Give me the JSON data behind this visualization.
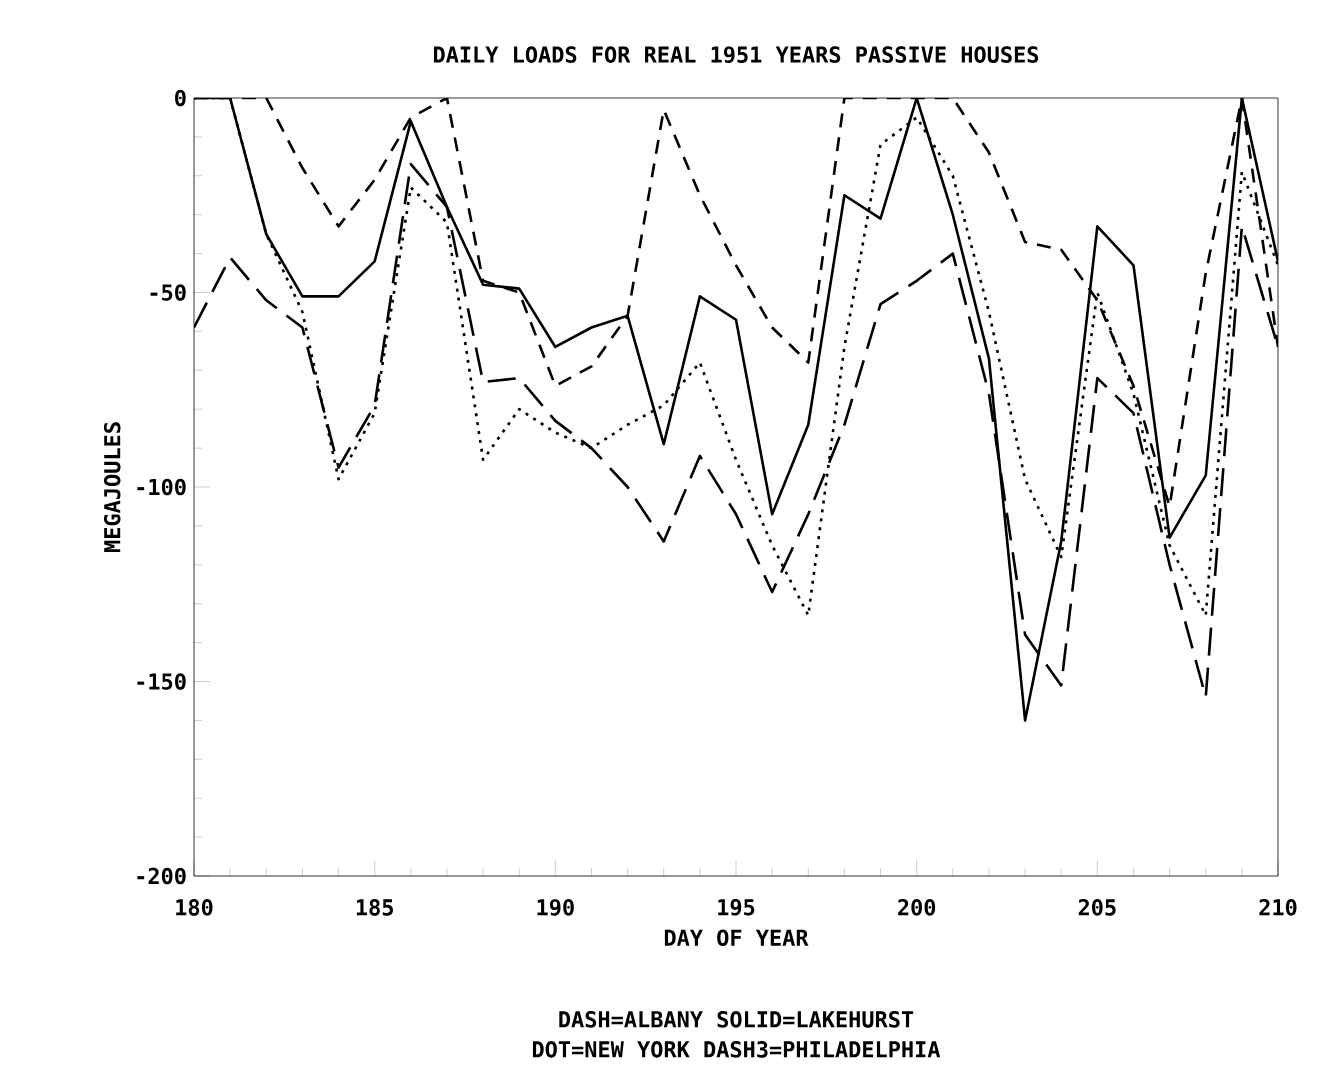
{
  "chart_data": {
    "type": "line",
    "title": "DAILY LOADS FOR REAL 1951 YEARS PASSIVE HOUSES",
    "xlabel": "DAY OF YEAR",
    "ylabel": "MEGAJOULES",
    "annotations": [
      "DASH=ALBANY  SOLID=LAKEHURST",
      "DOT=NEW YORK  DASH3=PHILADELPHIA"
    ],
    "x": [
      180,
      181,
      182,
      183,
      184,
      185,
      186,
      187,
      188,
      189,
      190,
      191,
      192,
      193,
      194,
      195,
      196,
      197,
      198,
      199,
      200,
      201,
      202,
      203,
      204,
      205,
      206,
      207,
      208,
      209,
      210
    ],
    "xlim": [
      180,
      210
    ],
    "xticks": [
      180,
      185,
      190,
      195,
      200,
      205,
      210
    ],
    "ylim": [
      -200,
      0
    ],
    "yticks": [
      0,
      -50,
      -100,
      -150,
      -200
    ],
    "grid": false,
    "marker": "none",
    "series": [
      {
        "color": "#000000",
        "line_style": "dashed",
        "values": [
          0,
          0,
          0,
          -18,
          -33,
          -21,
          -5,
          0,
          -47,
          -50,
          -74,
          -69,
          -56,
          -3,
          -25,
          -43,
          -59,
          -68,
          0,
          0,
          0,
          0,
          -14,
          -37,
          -39,
          -52,
          -74,
          -105,
          -45,
          0,
          -64
        ]
      },
      {
        "color": "#000000",
        "line_style": "solid",
        "values": [
          0,
          0,
          -35,
          -51,
          -51,
          -42,
          -6,
          -28,
          -48,
          -49,
          -64,
          -59,
          -56,
          -89,
          -51,
          -57,
          -107,
          -84,
          -25,
          -31,
          0,
          -30,
          -67,
          -160,
          -114,
          -33,
          -43,
          -113,
          -97,
          0,
          -42
        ]
      },
      {
        "color": "#000000",
        "line_style": "dotted",
        "values": [
          0,
          0,
          -35,
          -55,
          -98,
          -81,
          -23,
          -32,
          -93,
          -80,
          -86,
          -90,
          -84,
          -79,
          -68,
          -93,
          -115,
          -133,
          -64,
          -12,
          -5,
          -20,
          -55,
          -98,
          -118,
          -50,
          -76,
          -115,
          -133,
          -19,
          -43
        ]
      },
      {
        "color": "#000000",
        "line_style": "dashed",
        "values": [
          -59,
          -41,
          -52,
          -59,
          -95,
          -79,
          -17,
          -28,
          -73,
          -72,
          -83,
          -90,
          -100,
          -114,
          -92,
          -107,
          -127,
          -107,
          -84,
          -53,
          -47,
          -40,
          -76,
          -138,
          -151,
          -72,
          -81,
          -120,
          -154,
          -33,
          -64
        ]
      }
    ]
  }
}
